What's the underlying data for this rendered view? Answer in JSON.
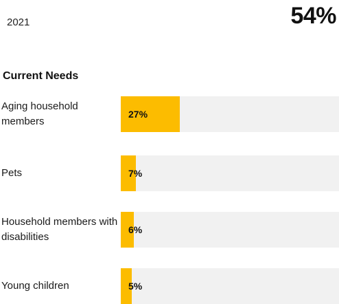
{
  "header": {
    "year": "2021",
    "headline_value": "54%"
  },
  "section_title": "Current Needs",
  "chart_data": {
    "type": "bar",
    "orientation": "horizontal",
    "title": "Current Needs",
    "categories": [
      "Aging household members",
      "Pets",
      "Household members with disabilities",
      "Young children"
    ],
    "values": [
      27,
      7,
      6,
      5
    ],
    "value_labels": [
      "27%",
      "7%",
      "6%",
      "5%"
    ],
    "xlim": [
      0,
      100
    ],
    "bar_color": "#fcbc00",
    "track_color": "#f1f1f1",
    "grid": false
  }
}
